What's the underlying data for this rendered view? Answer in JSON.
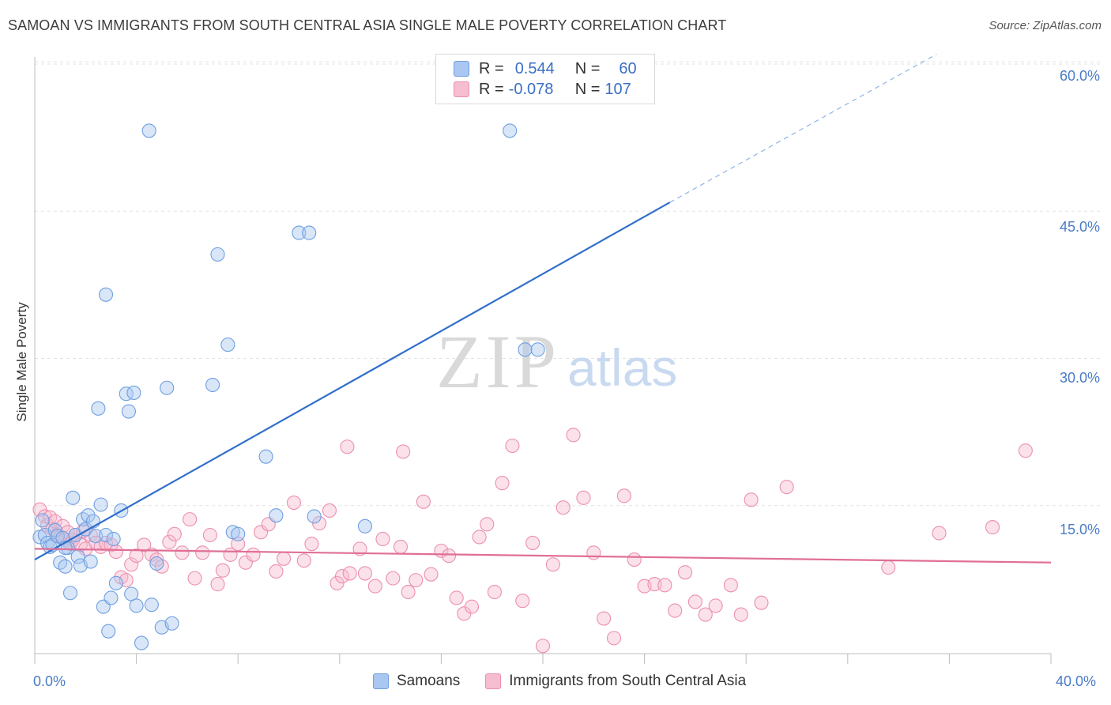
{
  "title": "SAMOAN VS IMMIGRANTS FROM SOUTH CENTRAL ASIA SINGLE MALE POVERTY CORRELATION CHART",
  "source": "Source: ZipAtlas.com",
  "watermark": {
    "zip": "ZIP",
    "atlas": "atlas"
  },
  "legend": {
    "rows": [
      {
        "r_label": "R =",
        "r_value": "0.544",
        "n_label": "N =",
        "n_value": "60"
      },
      {
        "r_label": "R =",
        "r_value": "-0.078",
        "n_label": "N =",
        "n_value": "107"
      }
    ]
  },
  "bottom_legend": {
    "samoans": "Samoans",
    "immigrants": "Immigrants from South Central Asia"
  },
  "colors": {
    "blue_fill": "#a9c7f0",
    "blue_stroke": "#6f9fe0",
    "blue_line": "#2f6fcc",
    "pink_fill": "#f6bcd0",
    "pink_stroke": "#ec8fb0",
    "pink_line": "#e06f97",
    "grid": "#e3e3e3",
    "tick_text": "#4a7bc8"
  },
  "chart_data": {
    "type": "scatter",
    "title": "SAMOAN VS IMMIGRANTS FROM SOUTH CENTRAL ASIA SINGLE MALE POVERTY CORRELATION CHART",
    "xlabel": "",
    "ylabel": "Single Male Poverty",
    "xlim": [
      0,
      40
    ],
    "ylim": [
      0,
      60
    ],
    "x_tick_labels": [
      "0.0%",
      "40.0%"
    ],
    "y_ticks": [
      15,
      30,
      45,
      60
    ],
    "y_tick_labels": [
      "15.0%",
      "30.0%",
      "45.0%",
      "60.0%"
    ],
    "grid": true,
    "series": [
      {
        "name": "Samoans",
        "points": [
          [
            0.2,
            11.8
          ],
          [
            0.3,
            13.5
          ],
          [
            0.4,
            12.0
          ],
          [
            0.5,
            11.2
          ],
          [
            0.6,
            10.8
          ],
          [
            0.7,
            11.0
          ],
          [
            0.8,
            12.5
          ],
          [
            0.9,
            11.9
          ],
          [
            1.0,
            9.2
          ],
          [
            1.1,
            11.7
          ],
          [
            1.2,
            8.8
          ],
          [
            1.3,
            10.7
          ],
          [
            1.4,
            6.1
          ],
          [
            1.5,
            15.8
          ],
          [
            1.6,
            12.0
          ],
          [
            1.7,
            9.8
          ],
          [
            1.8,
            8.9
          ],
          [
            1.9,
            13.6
          ],
          [
            2.0,
            12.6
          ],
          [
            2.1,
            14.0
          ],
          [
            2.2,
            9.3
          ],
          [
            2.3,
            13.4
          ],
          [
            2.4,
            11.9
          ],
          [
            2.6,
            15.1
          ],
          [
            2.7,
            4.7
          ],
          [
            2.8,
            12.0
          ],
          [
            2.9,
            2.2
          ],
          [
            3.0,
            5.6
          ],
          [
            3.1,
            11.6
          ],
          [
            3.2,
            7.1
          ],
          [
            3.4,
            14.5
          ],
          [
            3.6,
            26.4
          ],
          [
            3.7,
            24.6
          ],
          [
            3.8,
            6.0
          ],
          [
            4.0,
            4.8
          ],
          [
            4.2,
            1.0
          ],
          [
            4.5,
            53.2
          ],
          [
            4.6,
            4.9
          ],
          [
            4.8,
            9.1
          ],
          [
            5.0,
            2.6
          ],
          [
            5.2,
            27.0
          ],
          [
            5.4,
            3.0
          ],
          [
            2.5,
            24.9
          ],
          [
            2.8,
            36.5
          ],
          [
            3.9,
            26.5
          ],
          [
            7.0,
            27.3
          ],
          [
            7.2,
            40.6
          ],
          [
            7.6,
            31.4
          ],
          [
            7.8,
            12.3
          ],
          [
            8.0,
            12.1
          ],
          [
            9.1,
            20.0
          ],
          [
            9.5,
            14.0
          ],
          [
            10.4,
            42.8
          ],
          [
            10.8,
            42.8
          ],
          [
            11.0,
            13.9
          ],
          [
            13.0,
            12.9
          ],
          [
            18.7,
            53.2
          ],
          [
            19.3,
            30.9
          ],
          [
            19.8,
            30.9
          ],
          [
            1.2,
            10.7
          ]
        ]
      },
      {
        "name": "Immigrants from South Central Asia",
        "points": [
          [
            0.2,
            14.6
          ],
          [
            0.4,
            13.9
          ],
          [
            0.5,
            13.0
          ],
          [
            0.6,
            13.8
          ],
          [
            0.7,
            12.6
          ],
          [
            0.8,
            13.4
          ],
          [
            0.9,
            12.0
          ],
          [
            1.0,
            11.8
          ],
          [
            1.1,
            12.9
          ],
          [
            1.2,
            11.5
          ],
          [
            1.3,
            12.3
          ],
          [
            1.4,
            11.1
          ],
          [
            1.5,
            11.5
          ],
          [
            1.6,
            12.0
          ],
          [
            1.8,
            11.0
          ],
          [
            1.9,
            12.4
          ],
          [
            2.0,
            10.6
          ],
          [
            2.2,
            12.0
          ],
          [
            2.4,
            11.2
          ],
          [
            2.6,
            10.8
          ],
          [
            2.8,
            11.2
          ],
          [
            3.0,
            11.0
          ],
          [
            3.2,
            10.3
          ],
          [
            3.4,
            7.7
          ],
          [
            3.6,
            7.4
          ],
          [
            3.8,
            9.0
          ],
          [
            4.0,
            9.9
          ],
          [
            4.3,
            11.0
          ],
          [
            4.6,
            10.0
          ],
          [
            4.8,
            9.5
          ],
          [
            5.0,
            8.8
          ],
          [
            5.3,
            11.3
          ],
          [
            5.5,
            12.1
          ],
          [
            5.8,
            10.2
          ],
          [
            6.1,
            13.6
          ],
          [
            6.3,
            7.6
          ],
          [
            6.6,
            10.2
          ],
          [
            6.9,
            12.0
          ],
          [
            7.2,
            7.0
          ],
          [
            7.4,
            8.4
          ],
          [
            7.7,
            10.0
          ],
          [
            8.0,
            11.1
          ],
          [
            8.3,
            9.2
          ],
          [
            8.6,
            10.0
          ],
          [
            8.9,
            12.3
          ],
          [
            9.2,
            13.1
          ],
          [
            9.5,
            8.3
          ],
          [
            9.8,
            9.6
          ],
          [
            10.2,
            15.3
          ],
          [
            10.6,
            9.4
          ],
          [
            10.9,
            11.1
          ],
          [
            11.2,
            13.2
          ],
          [
            11.6,
            14.5
          ],
          [
            11.9,
            7.1
          ],
          [
            12.1,
            7.8
          ],
          [
            12.4,
            8.1
          ],
          [
            12.8,
            10.6
          ],
          [
            13.0,
            8.1
          ],
          [
            13.4,
            6.8
          ],
          [
            13.7,
            11.6
          ],
          [
            14.1,
            7.6
          ],
          [
            14.4,
            10.8
          ],
          [
            14.7,
            6.2
          ],
          [
            15.0,
            7.4
          ],
          [
            15.3,
            15.4
          ],
          [
            15.6,
            8.0
          ],
          [
            16.0,
            10.4
          ],
          [
            16.3,
            9.9
          ],
          [
            16.6,
            5.6
          ],
          [
            16.9,
            4.0
          ],
          [
            17.2,
            4.7
          ],
          [
            17.5,
            11.8
          ],
          [
            17.8,
            13.1
          ],
          [
            18.1,
            6.2
          ],
          [
            18.4,
            17.3
          ],
          [
            18.8,
            21.1
          ],
          [
            19.2,
            5.3
          ],
          [
            19.6,
            11.2
          ],
          [
            20.0,
            0.7
          ],
          [
            20.4,
            9.0
          ],
          [
            20.8,
            14.8
          ],
          [
            21.2,
            22.2
          ],
          [
            21.6,
            15.8
          ],
          [
            22.0,
            10.2
          ],
          [
            22.4,
            3.5
          ],
          [
            22.8,
            1.5
          ],
          [
            23.2,
            16.0
          ],
          [
            23.6,
            9.5
          ],
          [
            24.0,
            6.8
          ],
          [
            24.4,
            7.0
          ],
          [
            24.8,
            6.9
          ],
          [
            25.2,
            4.3
          ],
          [
            25.6,
            8.2
          ],
          [
            26.0,
            5.2
          ],
          [
            26.4,
            3.9
          ],
          [
            26.8,
            4.8
          ],
          [
            27.4,
            6.9
          ],
          [
            27.8,
            3.9
          ],
          [
            28.2,
            15.6
          ],
          [
            28.6,
            5.1
          ],
          [
            29.6,
            16.9
          ],
          [
            33.6,
            8.7
          ],
          [
            35.6,
            12.2
          ],
          [
            37.7,
            12.8
          ],
          [
            39.0,
            20.6
          ],
          [
            14.5,
            20.5
          ],
          [
            12.3,
            21.0
          ]
        ]
      }
    ],
    "trend_lines": [
      {
        "name": "Samoans",
        "x": [
          0,
          25,
          35.5
        ],
        "y": [
          9.5,
          45.9,
          61.0
        ],
        "solid_until_x": 25
      },
      {
        "name": "Immigrants from South Central Asia",
        "x": [
          0,
          40
        ],
        "y": [
          10.6,
          9.2
        ]
      }
    ]
  }
}
